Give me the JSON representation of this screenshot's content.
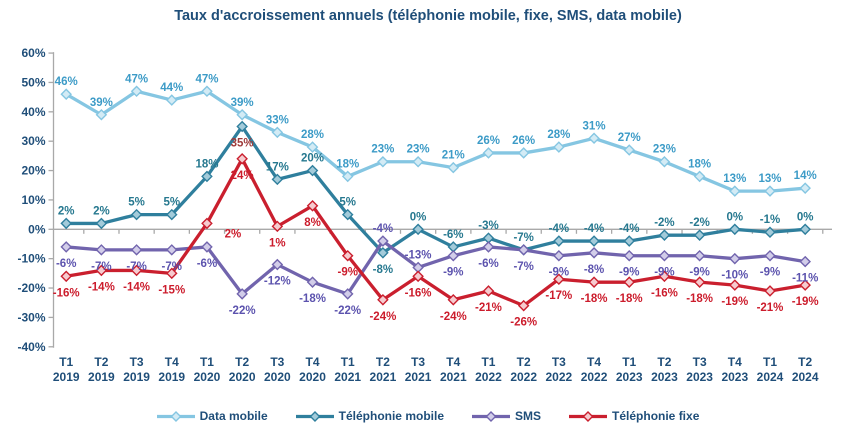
{
  "chart_data": {
    "type": "line",
    "title": "Taux d'accroissement annuels (téléphonie mobile, fixe, SMS, data mobile)",
    "xlabel": "",
    "ylabel": "",
    "ylim": [
      -40,
      60
    ],
    "ytick_labels": [
      "60%",
      "50%",
      "40%",
      "30%",
      "20%",
      "10%",
      "0%",
      "-10%",
      "-20%",
      "-30%",
      "-40%"
    ],
    "grid": "zero-line-only",
    "legend_position": "bottom",
    "axis_color": "#A9A9A9",
    "text_color": "#1F4E79",
    "categories": [
      "T1 2019",
      "T2 2019",
      "T3 2019",
      "T4 2019",
      "T1 2020",
      "T2 2020",
      "T3 2020",
      "T4 2020",
      "T1 2021",
      "T2 2021",
      "T3 2021",
      "T4 2021",
      "T1 2022",
      "T2 2022",
      "T3 2022",
      "T4 2022",
      "T1 2023",
      "T2 2023",
      "T3 2023",
      "T4 2023",
      "T1 2024",
      "T2 2024"
    ],
    "series": [
      {
        "name": "Data mobile",
        "values": [
          46,
          39,
          47,
          44,
          47,
          39,
          33,
          28,
          18,
          23,
          23,
          21,
          26,
          26,
          28,
          31,
          27,
          23,
          18,
          13,
          13,
          14
        ],
        "line_color": "#85C6E2",
        "marker_fill": "#D3EBF5",
        "label_color": "#3C9BC7",
        "label_side": "above",
        "label_side_overrides": {},
        "label_color_overrides": {}
      },
      {
        "name": "Téléphonie mobile",
        "values": [
          2,
          2,
          5,
          5,
          18,
          35,
          17,
          20,
          5,
          -8,
          0,
          -6,
          -3,
          -7,
          -4,
          -4,
          -4,
          -2,
          -2,
          0,
          -1,
          0
        ],
        "line_color": "#2F7F9D",
        "marker_fill": "#A3CBDA",
        "label_color": "#26788F",
        "label_side": "above",
        "label_side_overrides": {
          "5": "below",
          "9": "below"
        },
        "label_color_overrides": {
          "5": "#9E3B3B"
        }
      },
      {
        "name": "SMS",
        "values": [
          -6,
          -7,
          -7,
          -7,
          -6,
          -22,
          -12,
          -18,
          -22,
          -4,
          -13,
          -9,
          -6,
          -7,
          -9,
          -8,
          -9,
          -9,
          -9,
          -10,
          -9,
          -11
        ],
        "line_color": "#7164AD",
        "marker_fill": "#D2CDE9",
        "label_color": "#5C53AE",
        "label_side": "below",
        "label_side_overrides": {
          "9": "above",
          "10": "above"
        },
        "label_color_overrides": {}
      },
      {
        "name": "Téléphonie fixe",
        "values": [
          -16,
          -14,
          -14,
          -15,
          2,
          24,
          1,
          8,
          -9,
          -24,
          -16,
          -24,
          -21,
          -26,
          -17,
          -18,
          -18,
          -16,
          -18,
          -19,
          -21,
          -19
        ],
        "line_color": "#CA1F2E",
        "marker_fill": "#F6CBCF",
        "label_color": "#CC1C2C",
        "label_side": "below",
        "label_side_overrides": {
          "4": "right"
        },
        "label_color_overrides": {}
      }
    ]
  }
}
